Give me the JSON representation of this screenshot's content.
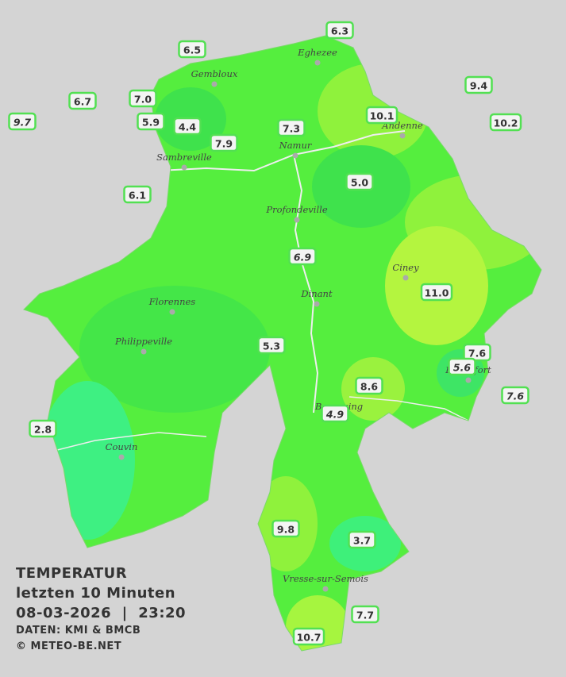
{
  "legend": {
    "title": "TEMPERATUR",
    "period": "letzten 10 Minuten",
    "datetime": "08-03-2026  |  23:20",
    "source": "DATEN: KMI & BMCB",
    "copyright": "© METEO-BE.NET"
  },
  "cities": [
    "Eghezee",
    "Gembloux",
    "Andenne",
    "Namur",
    "Sambreville",
    "Profondeville",
    "Ciney",
    "Dinant",
    "Florennes",
    "Philippeville",
    "Rochefort",
    "Beauraing",
    "Couvin",
    "Vresse-sur-Semois"
  ],
  "stations": [
    {
      "value": "6.3"
    },
    {
      "value": "6.5"
    },
    {
      "value": "9.4"
    },
    {
      "value": "6.7"
    },
    {
      "value": "7.0"
    },
    {
      "value": "10.1"
    },
    {
      "value": "10.2"
    },
    {
      "value": "9.7",
      "italic": true
    },
    {
      "value": "5.9"
    },
    {
      "value": "4.4"
    },
    {
      "value": "7.3"
    },
    {
      "value": "7.9"
    },
    {
      "value": "5.0"
    },
    {
      "value": "6.1"
    },
    {
      "value": "6.9",
      "italic": true
    },
    {
      "value": "11.0"
    },
    {
      "value": "5.3"
    },
    {
      "value": "7.6"
    },
    {
      "value": "5.6",
      "italic": true
    },
    {
      "value": "8.6"
    },
    {
      "value": "7.6",
      "italic": true
    },
    {
      "value": "4.9",
      "italic": true
    },
    {
      "value": "2.8"
    },
    {
      "value": "9.8"
    },
    {
      "value": "3.7"
    },
    {
      "value": "7.7"
    },
    {
      "value": "10.7"
    }
  ]
}
